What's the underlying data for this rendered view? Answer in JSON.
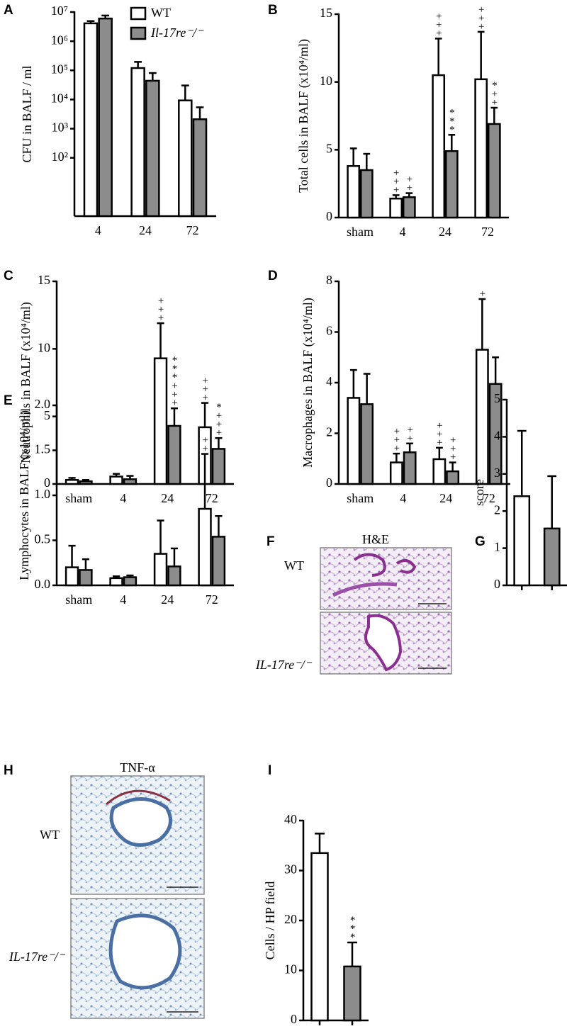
{
  "chart_data": [
    {
      "panel": "A",
      "type": "bar",
      "ylabel": "CFU in BALF / ml",
      "log": true,
      "legend": "top-right",
      "categories": [
        "4",
        "24",
        "72"
      ],
      "series": [
        {
          "name": "WT",
          "color": "#ffffff",
          "values": [
            4100000,
            120000,
            9300
          ],
          "errors": [
            800000,
            75000,
            21000
          ]
        },
        {
          "name": "Il-17re⁻/⁻",
          "color": "#8c8c8c",
          "values": [
            6000000,
            44000,
            2100
          ],
          "errors": [
            1600000,
            37000,
            3300
          ]
        }
      ],
      "ylim": [
        1,
        10000000
      ],
      "yticks": [
        {
          "value": 100,
          "label": "10²"
        },
        {
          "value": 1000,
          "label": "10³"
        },
        {
          "value": 10000,
          "label": "10⁴"
        },
        {
          "value": 100000,
          "label": "10⁵"
        },
        {
          "value": 1000000,
          "label": "10⁶"
        },
        {
          "value": 10000000,
          "label": "10⁷"
        }
      ]
    },
    {
      "panel": "B",
      "type": "bar",
      "ylabel": "Total cells in BALF (x10⁴/ml)",
      "categories": [
        "sham",
        "4",
        "24",
        "72"
      ],
      "series": [
        {
          "name": "WT",
          "color": "#ffffff",
          "values": [
            3.8,
            1.4,
            10.5,
            10.2
          ],
          "errors": [
            1.3,
            0.25,
            2.7,
            3.5
          ],
          "annotations": [
            null,
            "+++",
            "+++",
            "+++"
          ]
        },
        {
          "name": "Il-17re⁻/⁻",
          "color": "#8c8c8c",
          "values": [
            3.5,
            1.5,
            4.9,
            6.9
          ],
          "errors": [
            1.2,
            0.3,
            1.2,
            1.2
          ],
          "annotations": [
            null,
            "++",
            "***",
            "*++"
          ]
        }
      ],
      "ylim": [
        0,
        15
      ],
      "yticks": [
        0,
        5,
        10,
        15
      ]
    },
    {
      "panel": "C",
      "type": "bar",
      "ylabel": "Neutrophils in BALF (x10⁴/ml)",
      "categories": [
        "sham",
        "4",
        "24",
        "72"
      ],
      "series": [
        {
          "name": "WT",
          "color": "#ffffff",
          "values": [
            0.3,
            0.55,
            9.3,
            4.2
          ],
          "errors": [
            0.15,
            0.2,
            2.6,
            1.8
          ],
          "annotations": [
            null,
            null,
            "+++",
            "+++"
          ]
        },
        {
          "name": "Il-17re⁻/⁻",
          "color": "#8c8c8c",
          "values": [
            0.2,
            0.35,
            4.3,
            2.6
          ],
          "errors": [
            0.1,
            0.25,
            1.3,
            0.8
          ],
          "annotations": [
            null,
            null,
            "***+++",
            "*+++"
          ]
        }
      ],
      "ylim": [
        0,
        15
      ],
      "yticks": [
        0,
        5,
        10,
        15
      ]
    },
    {
      "panel": "D",
      "type": "bar",
      "ylabel": "Macrophages in BALF (x10⁴/ml)",
      "categories": [
        "sham",
        "4",
        "24",
        "72"
      ],
      "series": [
        {
          "name": "WT",
          "color": "#ffffff",
          "values": [
            3.4,
            0.85,
            0.98,
            5.3
          ],
          "errors": [
            1.1,
            0.35,
            0.45,
            2.0
          ],
          "annotations": [
            null,
            "+++",
            "+++",
            "+"
          ]
        },
        {
          "name": "Il-17re⁻/⁻",
          "color": "#8c8c8c",
          "values": [
            3.15,
            1.25,
            0.5,
            3.95
          ],
          "errors": [
            1.2,
            0.35,
            0.35,
            1.05
          ],
          "annotations": [
            null,
            "++",
            "+++",
            null
          ]
        }
      ],
      "ylim": [
        0,
        8
      ],
      "yticks": [
        0,
        2,
        4,
        6,
        8
      ]
    },
    {
      "panel": "E",
      "type": "bar",
      "ylabel": "Lymphocytes in BALF (x10⁴/ml)",
      "categories": [
        "sham",
        "4",
        "24",
        "72"
      ],
      "series": [
        {
          "name": "WT",
          "color": "#ffffff",
          "values": [
            0.2,
            0.08,
            0.35,
            0.85
          ],
          "errors": [
            0.24,
            0.02,
            0.37,
            0.61
          ],
          "annotations": [
            null,
            null,
            null,
            "++"
          ]
        },
        {
          "name": "Il-17re⁻/⁻",
          "color": "#8c8c8c",
          "values": [
            0.17,
            0.09,
            0.21,
            0.54
          ],
          "errors": [
            0.12,
            0.02,
            0.2,
            0.23
          ]
        }
      ],
      "ylim": [
        0,
        2
      ],
      "yticks": [
        {
          "value": 0,
          "label": "0.0"
        },
        {
          "value": 0.5,
          "label": "0.5"
        },
        {
          "value": 1,
          "label": "1.0"
        },
        {
          "value": 1.5,
          "label": "1.5"
        },
        {
          "value": 2,
          "label": "2.0"
        }
      ]
    },
    {
      "panel": "G",
      "type": "bar",
      "ylabel": "score",
      "categories": [
        null,
        null
      ],
      "values": [
        2.4,
        1.53
      ],
      "errors": [
        1.76,
        1.41
      ],
      "colors": [
        "#ffffff",
        "#8c8c8c"
      ],
      "ylim": [
        0,
        5
      ],
      "yticks": [
        0,
        1,
        2,
        3,
        4,
        5
      ]
    },
    {
      "panel": "I",
      "type": "bar",
      "ylabel": "Cells / HP field",
      "categories": [
        null,
        null
      ],
      "values": [
        33.5,
        10.8
      ],
      "errors": [
        3.9,
        4.8
      ],
      "annotations": [
        null,
        "***"
      ],
      "colors": [
        "#ffffff",
        "#8c8c8c"
      ],
      "ylim": [
        0,
        40
      ],
      "yticks": [
        0,
        10,
        20,
        30,
        40
      ]
    }
  ],
  "images": [
    {
      "panel": "F",
      "title": "H&E",
      "rows": [
        "WT",
        "IL-17re⁻/⁻"
      ]
    },
    {
      "panel": "H",
      "title": "TNF-α",
      "rows": [
        "WT",
        "IL-17re⁻/⁻"
      ]
    }
  ]
}
